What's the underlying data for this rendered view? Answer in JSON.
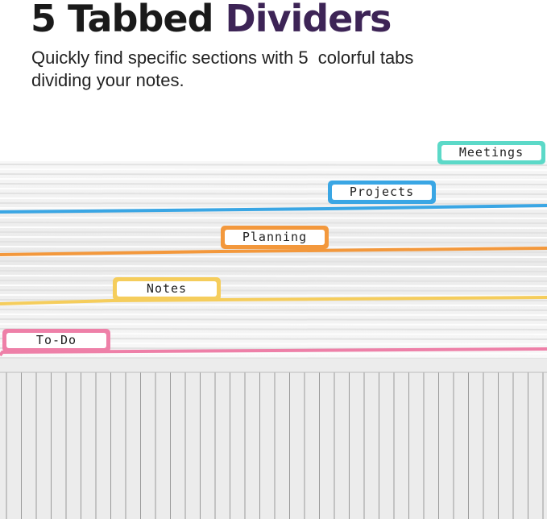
{
  "heading": {
    "text": "5 Tabbed",
    "highlight": "Dividers"
  },
  "subtitle": [
    "Quickly find specific sections with 5  colorful tabs",
    "dividing your notes."
  ],
  "tabs": [
    {
      "label": "Meetings",
      "color": "#5cd9c8"
    },
    {
      "label": "Projects",
      "color": "#3aa6e4"
    },
    {
      "label": "Planning",
      "color": "#f3983c"
    },
    {
      "label": "Notes",
      "color": "#f5cd5c"
    },
    {
      "label": "To-Do",
      "color": "#ee80a8"
    }
  ]
}
